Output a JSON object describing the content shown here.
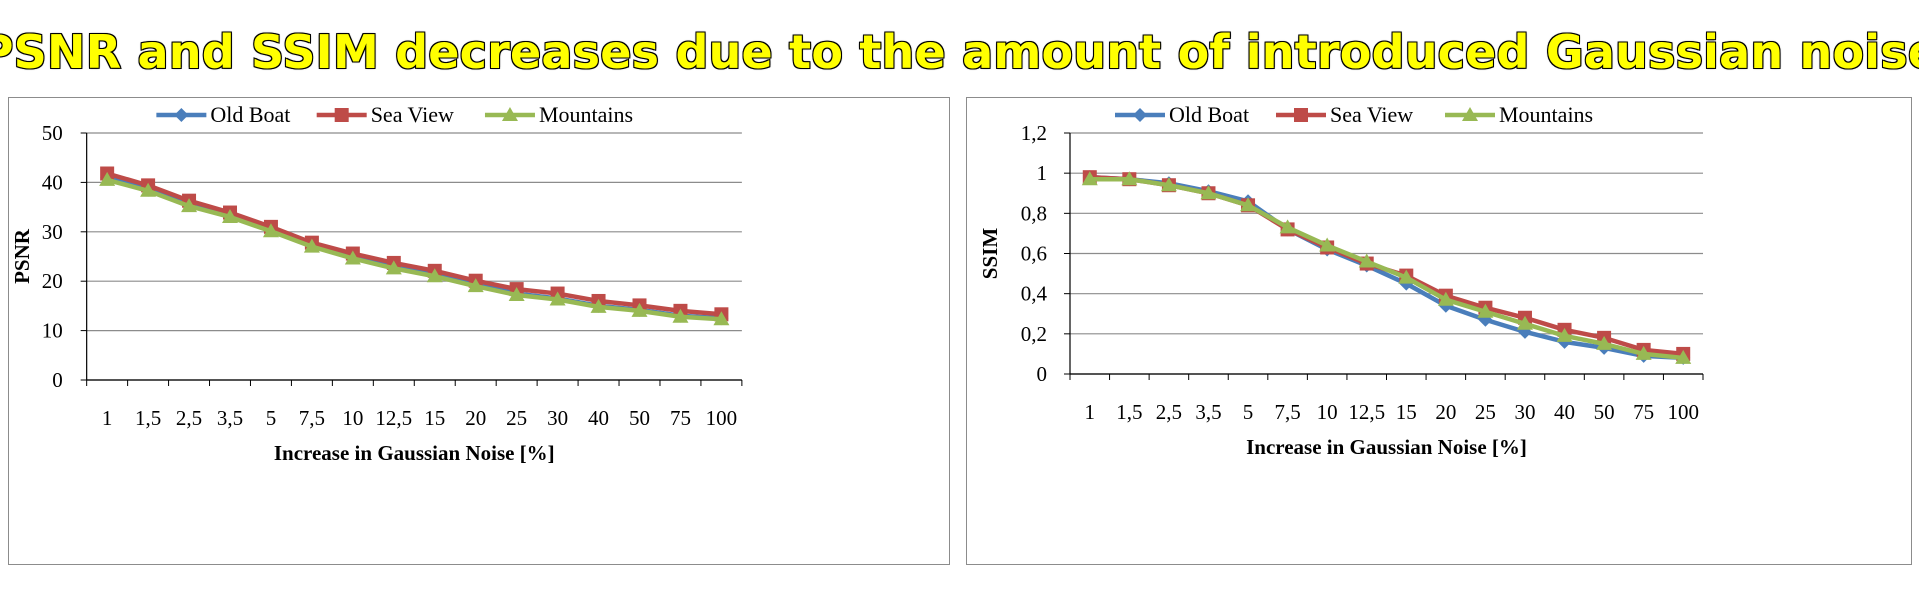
{
  "slide": {
    "title": "PSNR and SSIM decreases due to the amount of introduced Gaussian noise"
  },
  "colors": {
    "old_boat": "#4a7ebb",
    "sea_view": "#be4b48",
    "mountains": "#98b954",
    "title_fill": "#ffff00",
    "grid": "#8c8c8c"
  },
  "chart_data": [
    {
      "type": "line",
      "title": "",
      "xlabel": "Increase in  Gaussian Noise [%]",
      "ylabel": "PSNR",
      "categories": [
        "1",
        "1,5",
        "2,5",
        "3,5",
        "5",
        "7,5",
        "10",
        "12,5",
        "15",
        "20",
        "25",
        "30",
        "40",
        "50",
        "75",
        "100"
      ],
      "ylim": [
        0,
        50
      ],
      "yticks": [
        "0",
        "10",
        "20",
        "30",
        "40",
        "50"
      ],
      "grid": true,
      "legend_position": "top",
      "series": [
        {
          "name": "Old Boat",
          "marker": "diamond",
          "values": [
            41,
            38.5,
            35.5,
            33.3,
            30.5,
            27.3,
            25,
            23,
            21.3,
            19.3,
            17.5,
            16.5,
            15,
            14.2,
            13,
            12.5
          ]
        },
        {
          "name": "Sea View",
          "marker": "square",
          "values": [
            41.8,
            39.4,
            36.3,
            33.9,
            31,
            27.8,
            25.6,
            23.7,
            22.1,
            20.1,
            18.4,
            17.5,
            16,
            15.1,
            14,
            13.3
          ]
        },
        {
          "name": "Mountains",
          "marker": "triangle",
          "values": [
            40.5,
            38.3,
            35.2,
            33,
            30.1,
            27,
            24.6,
            22.6,
            21,
            19,
            17.2,
            16.3,
            14.8,
            14,
            12.8,
            12.3
          ]
        }
      ]
    },
    {
      "type": "line",
      "title": "",
      "xlabel": "Increase in  Gaussian Noise [%]",
      "ylabel": "SSIM",
      "categories": [
        "1",
        "1,5",
        "2,5",
        "3,5",
        "5",
        "7,5",
        "10",
        "12,5",
        "15",
        "20",
        "25",
        "30",
        "40",
        "50",
        "75",
        "100"
      ],
      "ylim": [
        0,
        1.2
      ],
      "yticks": [
        "0",
        "0,2",
        "0,4",
        "0,6",
        "0,8",
        "1",
        "1,2"
      ],
      "grid": true,
      "legend_position": "top",
      "series": [
        {
          "name": "Old Boat",
          "marker": "diamond",
          "values": [
            0.98,
            0.97,
            0.95,
            0.91,
            0.86,
            0.72,
            0.62,
            0.54,
            0.45,
            0.34,
            0.27,
            0.21,
            0.16,
            0.13,
            0.09,
            0.08
          ]
        },
        {
          "name": "Sea View",
          "marker": "square",
          "values": [
            0.98,
            0.97,
            0.94,
            0.9,
            0.84,
            0.72,
            0.63,
            0.55,
            0.49,
            0.39,
            0.33,
            0.28,
            0.22,
            0.18,
            0.12,
            0.1
          ]
        },
        {
          "name": "Mountains",
          "marker": "triangle",
          "values": [
            0.97,
            0.97,
            0.94,
            0.9,
            0.84,
            0.73,
            0.64,
            0.56,
            0.48,
            0.37,
            0.31,
            0.25,
            0.19,
            0.15,
            0.1,
            0.08
          ]
        }
      ]
    }
  ]
}
